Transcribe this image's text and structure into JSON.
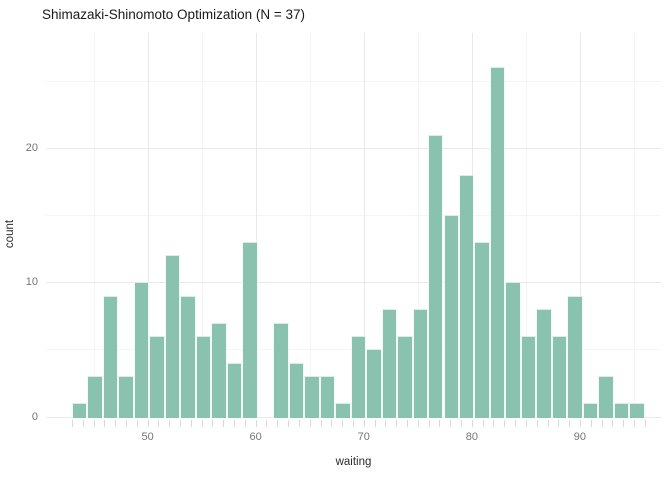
{
  "title": "Shimazaki-Shinomoto Optimization (N = 37)",
  "xlabel": "waiting",
  "ylabel": "count",
  "colors": {
    "bar_fill": "#8ac2b0",
    "bar_stroke": "#ffffff",
    "grid_major": "#e9e9e9",
    "grid_minor": "#f5f5f5",
    "rug_tick": "#d9d9d9",
    "title_text": "#1a1a1a",
    "axis_label_text": "#2b2b2b",
    "tick_label_text": "#757575",
    "background": "#ffffff"
  },
  "chart_data": {
    "type": "bar",
    "subtype": "histogram",
    "title": "Shimazaki-Shinomoto Optimization (N = 37)",
    "xlabel": "waiting",
    "ylabel": "count",
    "n_bins": 37,
    "bin_start": 43,
    "bin_width": 1.43243,
    "counts": [
      1,
      3,
      9,
      3,
      10,
      6,
      12,
      9,
      6,
      7,
      4,
      13,
      0,
      7,
      4,
      3,
      3,
      1,
      6,
      5,
      8,
      6,
      8,
      21,
      15,
      18,
      13,
      26,
      10,
      6,
      8,
      6,
      9,
      1,
      3,
      1,
      1
    ],
    "total_observations": 272,
    "x_ticks_major": [
      50,
      60,
      70,
      80,
      90
    ],
    "x_ticks_minor": [
      45,
      55,
      65,
      75,
      85,
      95
    ],
    "y_ticks_major": [
      0,
      10,
      20
    ],
    "y_ticks_minor": [
      5,
      15,
      25
    ],
    "xlim": [
      40.6,
      97.5
    ],
    "ylim": [
      0,
      27.3
    ],
    "rug_tick_values_start": 43,
    "rug_tick_values_end": 96,
    "grid": true,
    "legend_position": "none"
  }
}
